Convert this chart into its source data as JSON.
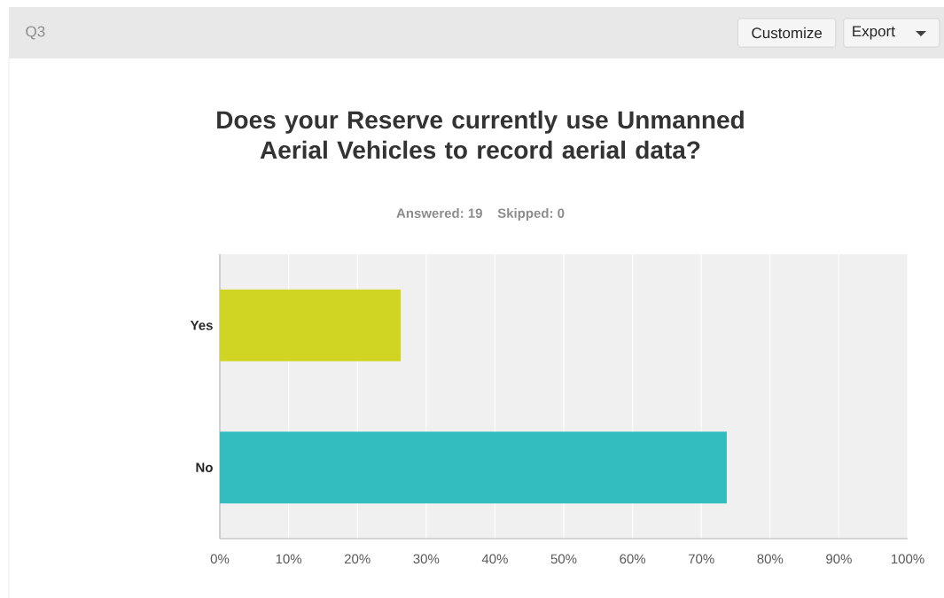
{
  "chart_data": {
    "type": "bar",
    "orientation": "horizontal",
    "title": "Does your Reserve currently use Unmanned Aerial Vehicles to record aerial data?",
    "subtitle": "Answered: 19    Skipped: 0",
    "categories": [
      "Yes",
      "No"
    ],
    "values": [
      26.3,
      73.7
    ],
    "colors": [
      "#d0d523",
      "#33bdbf"
    ],
    "xlim": [
      0,
      100
    ],
    "xticks": [
      {
        "value": 0,
        "label": "0%"
      },
      {
        "value": 10,
        "label": "10%"
      },
      {
        "value": 20,
        "label": "20%"
      },
      {
        "value": 30,
        "label": "30%"
      },
      {
        "value": 40,
        "label": "40%"
      },
      {
        "value": 50,
        "label": "50%"
      },
      {
        "value": 60,
        "label": "60%"
      },
      {
        "value": 70,
        "label": "70%"
      },
      {
        "value": 80,
        "label": "80%"
      },
      {
        "value": 90,
        "label": "90%"
      },
      {
        "value": 100,
        "label": "100%"
      }
    ],
    "grid": "x",
    "annotations": [
      "Q3",
      "Customize",
      "Export"
    ]
  }
}
